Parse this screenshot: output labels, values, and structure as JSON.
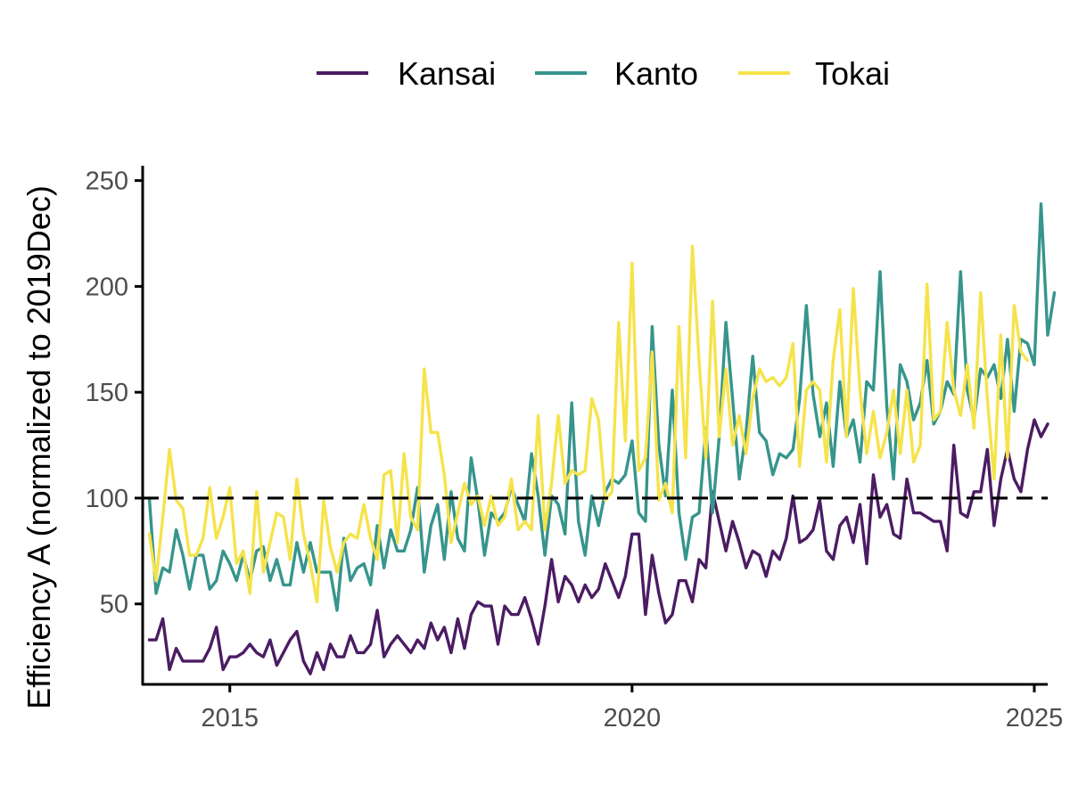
{
  "chart_data": {
    "type": "line",
    "title": "",
    "xlabel": "",
    "ylabel": "Efficiency A (normalized to 2019Dec)",
    "x_start": "2014-01",
    "x_step": "1 month",
    "xlim": [
      "2014-01",
      "2025-02"
    ],
    "x_ticks": [
      "2015",
      "2020",
      "2025"
    ],
    "ylim": [
      12,
      257
    ],
    "y_ticks": [
      50,
      100,
      150,
      200,
      250
    ],
    "reference_line": {
      "y": 100,
      "style": "dashed",
      "color": "#000000"
    },
    "grid": false,
    "legend_position": "top",
    "series": [
      {
        "name": "Kansai",
        "color": "#4b1c63",
        "values": [
          33,
          33,
          43,
          19,
          29,
          23,
          23,
          23,
          23,
          29,
          39,
          19,
          25,
          25,
          27,
          31,
          27,
          25,
          33,
          21,
          27,
          33,
          37,
          23,
          17,
          27,
          19,
          31,
          25,
          25,
          35,
          27,
          27,
          31,
          47,
          25,
          31,
          35,
          31,
          27,
          33,
          29,
          41,
          33,
          39,
          27,
          43,
          29,
          45,
          51,
          49,
          49,
          31,
          49,
          45,
          45,
          53,
          43,
          31,
          49,
          71,
          51,
          63,
          59,
          51,
          59,
          53,
          57,
          69,
          61,
          53,
          63,
          83,
          83,
          45,
          73,
          55,
          41,
          45,
          61,
          61,
          51,
          71,
          67,
          103,
          89,
          75,
          89,
          79,
          67,
          75,
          73,
          63,
          75,
          71,
          81,
          101,
          79,
          81,
          85,
          99,
          75,
          71,
          87,
          91,
          79,
          97,
          69,
          111,
          91,
          97,
          83,
          81,
          109,
          93,
          93,
          91,
          89,
          89,
          75,
          125,
          93,
          91,
          103,
          103,
          123,
          87,
          109,
          123,
          109,
          103,
          123,
          137,
          129,
          135
        ]
      },
      {
        "name": "Kanto",
        "color": "#36958c",
        "values": [
          100,
          55,
          67,
          65,
          85,
          73,
          57,
          73,
          73,
          57,
          61,
          75,
          69,
          61,
          73,
          61,
          75,
          77,
          61,
          71,
          59,
          59,
          79,
          65,
          79,
          65,
          65,
          65,
          47,
          81,
          61,
          67,
          69,
          59,
          87,
          67,
          85,
          75,
          75,
          85,
          105,
          65,
          87,
          97,
          71,
          103,
          81,
          75,
          119,
          99,
          73,
          93,
          89,
          93,
          105,
          97,
          89,
          121,
          101,
          73,
          101,
          97,
          83,
          145,
          89,
          73,
          101,
          87,
          103,
          109,
          107,
          111,
          127,
          93,
          89,
          181,
          125,
          101,
          151,
          93,
          71,
          91,
          93,
          133,
          93,
          129,
          183,
          147,
          109,
          131,
          167,
          131,
          127,
          111,
          121,
          119,
          123,
          147,
          191,
          149,
          129,
          145,
          115,
          155,
          129,
          137,
          117,
          155,
          151,
          207,
          143,
          109,
          163,
          155,
          137,
          145,
          165,
          135,
          141,
          155,
          149,
          207,
          151,
          137,
          161,
          157,
          163,
          147,
          175,
          141,
          175,
          173,
          163,
          239,
          177,
          197
        ]
      },
      {
        "name": "Tokai",
        "color": "#f5e34b",
        "values": [
          83,
          61,
          91,
          123,
          99,
          95,
          73,
          73,
          81,
          105,
          81,
          91,
          105,
          69,
          75,
          55,
          103,
          65,
          79,
          93,
          91,
          71,
          109,
          83,
          69,
          51,
          99,
          77,
          65,
          79,
          83,
          81,
          97,
          81,
          71,
          111,
          113,
          79,
          121,
          91,
          85,
          161,
          131,
          131,
          111,
          79,
          93,
          107,
          97,
          101,
          87,
          101,
          87,
          91,
          109,
          85,
          89,
          85,
          139,
          85,
          107,
          139,
          107,
          113,
          111,
          113,
          147,
          137,
          99,
          103,
          183,
          127,
          211,
          113,
          119,
          169,
          99,
          107,
          93,
          181,
          119,
          219,
          165,
          119,
          193,
          129,
          161,
          125,
          139,
          121,
          147,
          161,
          155,
          157,
          153,
          157,
          173,
          115,
          151,
          155,
          151,
          117,
          165,
          189,
          129,
          199,
          151,
          121,
          141,
          119,
          131,
          151,
          121,
          151,
          117,
          125,
          201,
          137,
          141,
          183,
          151,
          139,
          163,
          133,
          197,
          147,
          109,
          177,
          119,
          191,
          169,
          165
        ]
      }
    ]
  }
}
